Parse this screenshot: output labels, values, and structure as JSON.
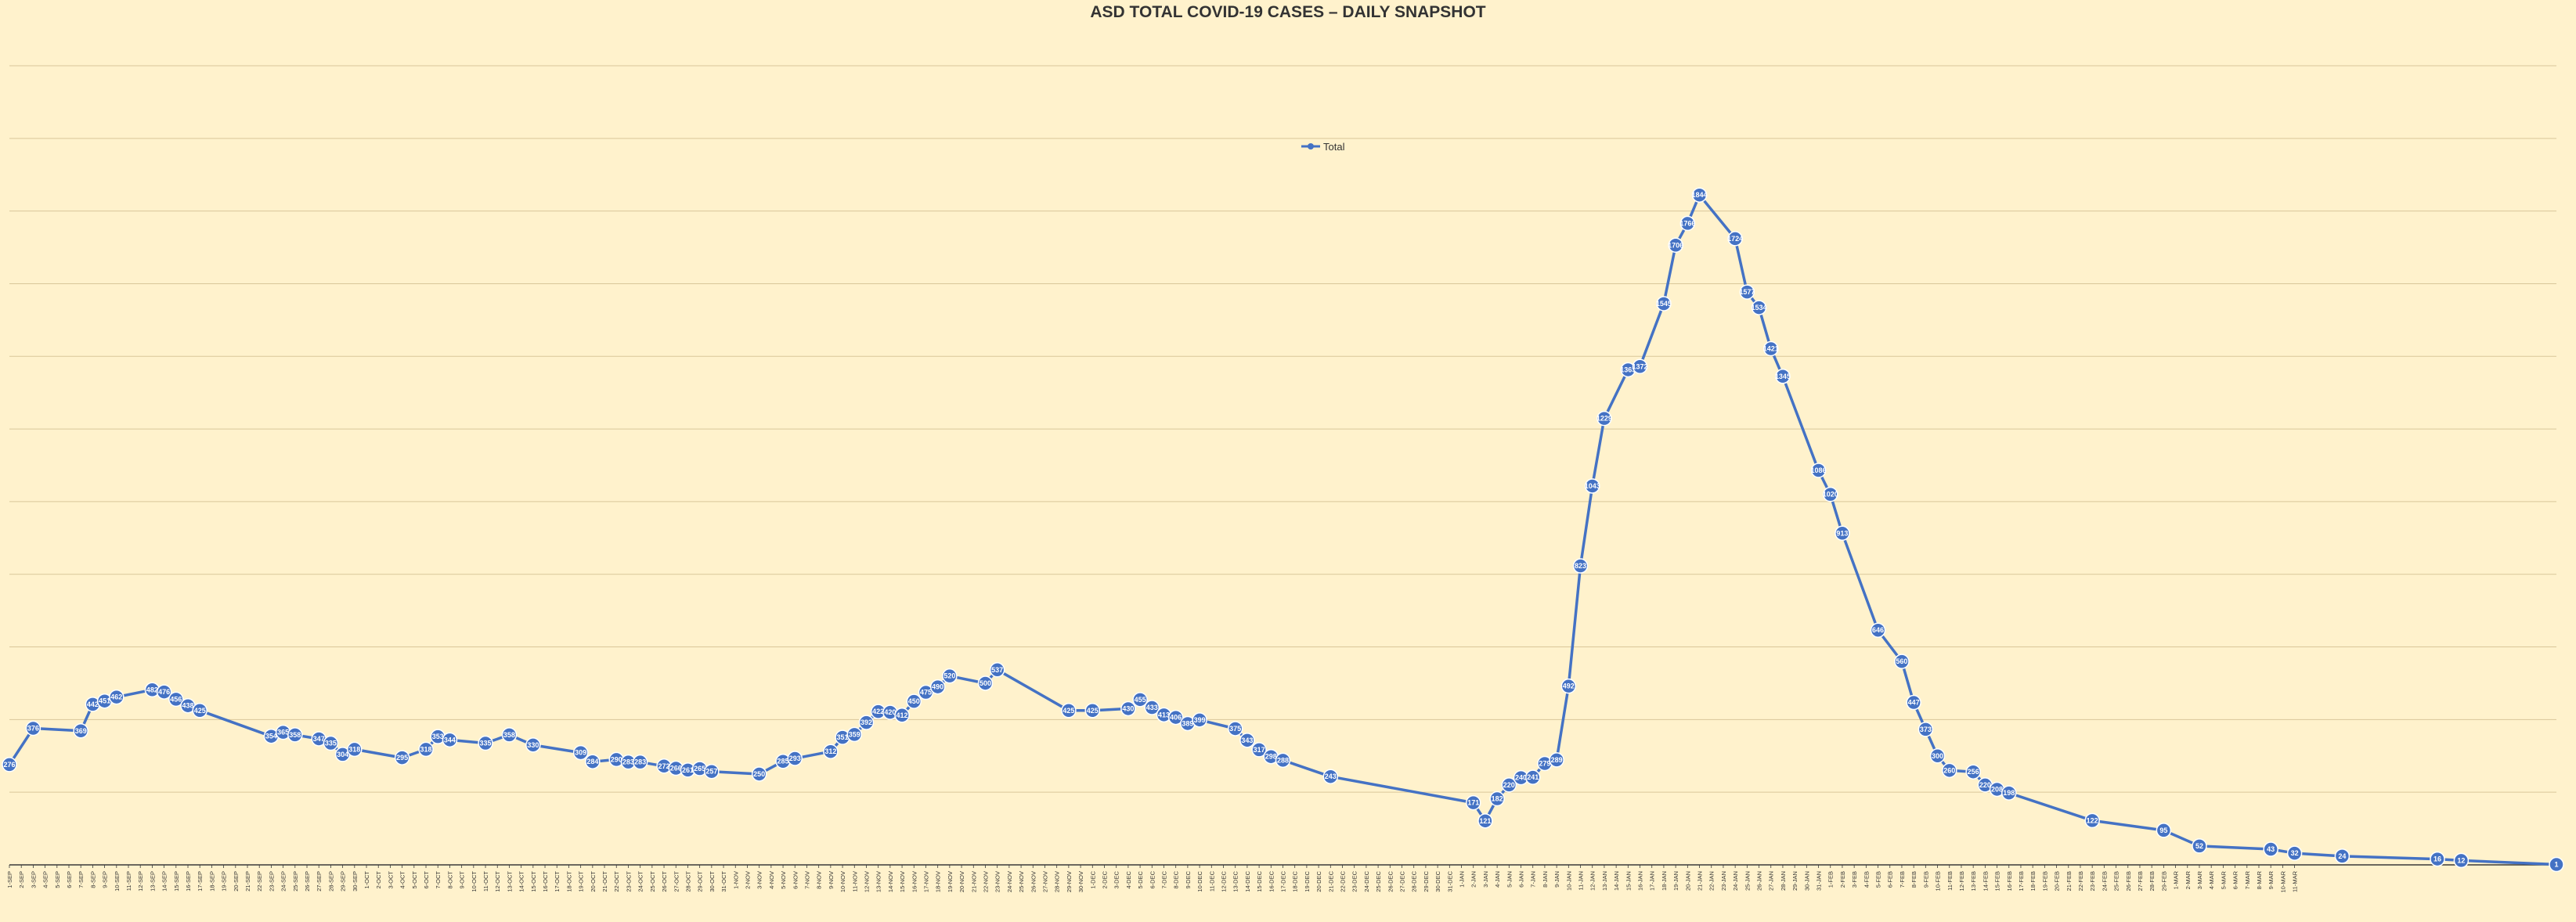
{
  "chart_data": {
    "type": "line",
    "title": "ASD TOTAL COVID-19 CASES – DAILY SNAPSHOT",
    "xlabel": "",
    "ylabel": "",
    "ylim": [
      0,
      2200
    ],
    "grid": true,
    "legend": "top-center",
    "colors": {
      "series": "#4472C4",
      "background": "#FFF2CC",
      "grid": "#D9C79A"
    },
    "series": [
      {
        "name": "Total",
        "points": [
          {
            "x": "1-SEP",
            "y": 276
          },
          {
            "x": "3-SEP",
            "y": 376
          },
          {
            "x": "7-SEP",
            "y": 369
          },
          {
            "x": "8-SEP",
            "y": 442
          },
          {
            "x": "9-SEP",
            "y": 451
          },
          {
            "x": "10-SEP",
            "y": 462
          },
          {
            "x": "13-SEP",
            "y": 482
          },
          {
            "x": "14-SEP",
            "y": 476
          },
          {
            "x": "15-SEP",
            "y": 456
          },
          {
            "x": "16-SEP",
            "y": 438
          },
          {
            "x": "17-SEP",
            "y": 425
          },
          {
            "x": "23-SEP",
            "y": 354
          },
          {
            "x": "24-SEP",
            "y": 365
          },
          {
            "x": "25-SEP",
            "y": 358
          },
          {
            "x": "27-SEP",
            "y": 347
          },
          {
            "x": "28-SEP",
            "y": 335
          },
          {
            "x": "29-SEP",
            "y": 304
          },
          {
            "x": "30-SEP",
            "y": 318
          },
          {
            "x": "4-OCT",
            "y": 295
          },
          {
            "x": "6-OCT",
            "y": 318
          },
          {
            "x": "7-OCT",
            "y": 353
          },
          {
            "x": "8-OCT",
            "y": 344
          },
          {
            "x": "11-OCT",
            "y": 335
          },
          {
            "x": "13-OCT",
            "y": 358
          },
          {
            "x": "15-OCT",
            "y": 330
          },
          {
            "x": "19-OCT",
            "y": 309
          },
          {
            "x": "20-OCT",
            "y": 284
          },
          {
            "x": "22-OCT",
            "y": 290
          },
          {
            "x": "23-OCT",
            "y": 283
          },
          {
            "x": "24-OCT",
            "y": 283
          },
          {
            "x": "26-OCT",
            "y": 272
          },
          {
            "x": "27-OCT",
            "y": 266
          },
          {
            "x": "28-OCT",
            "y": 261
          },
          {
            "x": "29-OCT",
            "y": 265
          },
          {
            "x": "30-OCT",
            "y": 257
          },
          {
            "x": "3-NOV",
            "y": 250
          },
          {
            "x": "5-NOV",
            "y": 285
          },
          {
            "x": "6-NOV",
            "y": 293
          },
          {
            "x": "9-NOV",
            "y": 312
          },
          {
            "x": "10-NOV",
            "y": 351
          },
          {
            "x": "11-NOV",
            "y": 359
          },
          {
            "x": "12-NOV",
            "y": 392
          },
          {
            "x": "13-NOV",
            "y": 422
          },
          {
            "x": "14-NOV",
            "y": 420
          },
          {
            "x": "15-NOV",
            "y": 412
          },
          {
            "x": "16-NOV",
            "y": 450
          },
          {
            "x": "17-NOV",
            "y": 475
          },
          {
            "x": "18-NOV",
            "y": 490
          },
          {
            "x": "19-NOV",
            "y": 520
          },
          {
            "x": "22-NOV",
            "y": 500
          },
          {
            "x": "23-NOV",
            "y": 537
          },
          {
            "x": "29-NOV",
            "y": 425
          },
          {
            "x": "1-DEC",
            "y": 425
          },
          {
            "x": "4-DEC",
            "y": 430
          },
          {
            "x": "5-DEC",
            "y": 455
          },
          {
            "x": "6-DEC",
            "y": 433
          },
          {
            "x": "7-DEC",
            "y": 413
          },
          {
            "x": "8-DEC",
            "y": 406
          },
          {
            "x": "9-DEC",
            "y": 389
          },
          {
            "x": "10-DEC",
            "y": 399
          },
          {
            "x": "13-DEC",
            "y": 375
          },
          {
            "x": "14-DEC",
            "y": 343
          },
          {
            "x": "15-DEC",
            "y": 317
          },
          {
            "x": "16-DEC",
            "y": 298
          },
          {
            "x": "17-DEC",
            "y": 288
          },
          {
            "x": "21-DEC",
            "y": 243
          },
          {
            "x": "2-JAN",
            "y": 171
          },
          {
            "x": "3-JAN",
            "y": 121
          },
          {
            "x": "4-JAN",
            "y": 182
          },
          {
            "x": "5-JAN",
            "y": 220
          },
          {
            "x": "6-JAN",
            "y": 240
          },
          {
            "x": "7-JAN",
            "y": 241
          },
          {
            "x": "8-JAN",
            "y": 279
          },
          {
            "x": "9-JAN",
            "y": 289
          },
          {
            "x": "10-JAN",
            "y": 492
          },
          {
            "x": "11-JAN",
            "y": 823
          },
          {
            "x": "12-JAN",
            "y": 1043
          },
          {
            "x": "13-JAN",
            "y": 1229
          },
          {
            "x": "15-JAN",
            "y": 1363
          },
          {
            "x": "16-JAN",
            "y": 1372
          },
          {
            "x": "18-JAN",
            "y": 1545
          },
          {
            "x": "19-JAN",
            "y": 1706
          },
          {
            "x": "20-JAN",
            "y": 1766
          },
          {
            "x": "21-JAN",
            "y": 1844
          },
          {
            "x": "24-JAN",
            "y": 1724
          },
          {
            "x": "25-JAN",
            "y": 1577
          },
          {
            "x": "26-JAN",
            "y": 1534
          },
          {
            "x": "27-JAN",
            "y": 1421
          },
          {
            "x": "28-JAN",
            "y": 1345
          },
          {
            "x": "31-JAN",
            "y": 1086
          },
          {
            "x": "1-FEB",
            "y": 1020
          },
          {
            "x": "2-FEB",
            "y": 913
          },
          {
            "x": "5-FEB",
            "y": 646
          },
          {
            "x": "7-FEB",
            "y": 560
          },
          {
            "x": "8-FEB",
            "y": 447
          },
          {
            "x": "9-FEB",
            "y": 373
          },
          {
            "x": "10-FEB",
            "y": 300
          },
          {
            "x": "11-FEB",
            "y": 260
          },
          {
            "x": "13-FEB",
            "y": 256
          },
          {
            "x": "14-FEB",
            "y": 220
          },
          {
            "x": "15-FEB",
            "y": 208
          },
          {
            "x": "16-FEB",
            "y": 198
          },
          {
            "x": "23-FEB",
            "y": 122
          },
          {
            "x": "29-FEB",
            "y": 95
          },
          {
            "x": "3-MAR",
            "y": 52
          },
          {
            "x": "9-MAR",
            "y": 43
          },
          {
            "x": "11-MAR",
            "y": 32
          },
          {
            "x": "15-MAR",
            "y": 24
          },
          {
            "x": "23-MAR",
            "y": 16
          },
          {
            "x": "25-MAR",
            "y": 12
          },
          {
            "x": "2-APR",
            "y": 1
          }
        ],
        "labels": [
          "276",
          "376",
          "369",
          "442",
          "451",
          "462",
          "482",
          "476",
          "456",
          "438",
          "425",
          "354",
          "365",
          "358",
          "347",
          "335",
          "304",
          "318",
          "295",
          "318",
          "353",
          "344",
          "335",
          "358",
          "330",
          "309",
          "284",
          "290",
          "283",
          "283",
          "272",
          "266",
          "261",
          "265",
          "257",
          "250",
          "285",
          "293",
          "312",
          "351",
          "359",
          "392",
          "422",
          "420",
          "412",
          "450",
          "475",
          "490",
          "520",
          "500",
          "537",
          "425",
          "425",
          "430",
          "455",
          "433",
          "413",
          "406",
          "389",
          "399",
          "375",
          "343",
          "317",
          "298",
          "288",
          "243",
          "171",
          "121",
          "182",
          "220",
          "240",
          "241",
          "279",
          "289",
          "492",
          "823",
          "1043",
          "1229",
          "1363",
          "1372",
          "1545",
          "1706",
          "1766",
          "1844",
          "1724",
          "1577",
          "1534",
          "1421",
          "1345",
          "1086",
          "1020",
          "913",
          "646",
          "560",
          "447",
          "373",
          "300",
          "260",
          "256",
          "220",
          "208",
          "198",
          "122",
          "95",
          "52",
          "43",
          "32",
          "24",
          "16",
          "12",
          "1"
        ]
      }
    ]
  }
}
